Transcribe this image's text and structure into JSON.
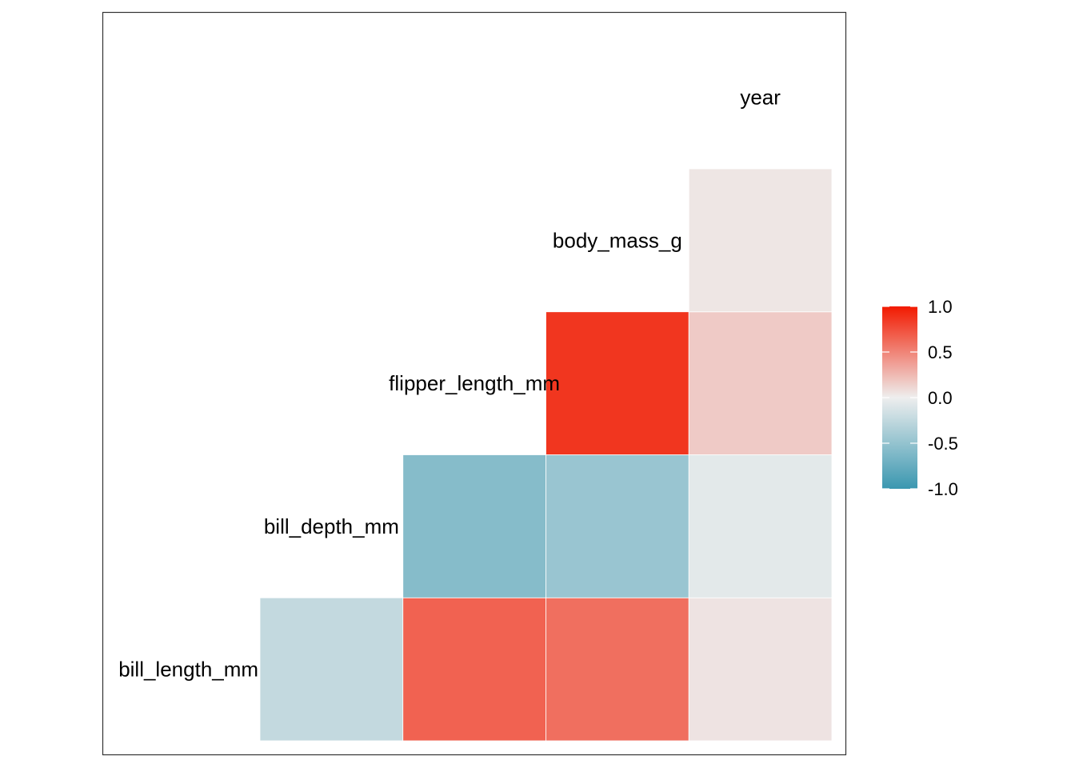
{
  "chart_data": {
    "type": "heatmap",
    "title": "",
    "variables": [
      "bill_length_mm",
      "bill_depth_mm",
      "flipper_length_mm",
      "body_mass_g",
      "year"
    ],
    "cells": [
      {
        "row": "bill_length_mm",
        "col": "bill_depth_mm",
        "value": -0.24
      },
      {
        "row": "bill_length_mm",
        "col": "flipper_length_mm",
        "value": 0.66
      },
      {
        "row": "bill_length_mm",
        "col": "body_mass_g",
        "value": 0.6
      },
      {
        "row": "bill_length_mm",
        "col": "year",
        "value": 0.05
      },
      {
        "row": "bill_depth_mm",
        "col": "flipper_length_mm",
        "value": -0.58
      },
      {
        "row": "bill_depth_mm",
        "col": "body_mass_g",
        "value": -0.47
      },
      {
        "row": "bill_depth_mm",
        "col": "year",
        "value": -0.06
      },
      {
        "row": "flipper_length_mm",
        "col": "body_mass_g",
        "value": 0.87
      },
      {
        "row": "flipper_length_mm",
        "col": "year",
        "value": 0.17
      },
      {
        "row": "body_mass_g",
        "col": "year",
        "value": 0.04
      }
    ],
    "color_scale": {
      "low": "#3a97b0",
      "mid": "#eeeeee",
      "high": "#f21a00",
      "limits": [
        -1,
        1
      ]
    },
    "legend": {
      "position": "right",
      "ticks": [
        "1.0",
        "0.5",
        "0.0",
        "-0.5",
        "-1.0"
      ]
    },
    "grid": false
  }
}
